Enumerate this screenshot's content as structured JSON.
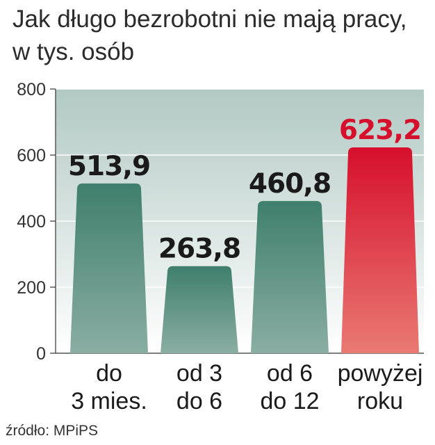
{
  "title": "Jak długo bezrobotni nie mają pracy, w tys. osób",
  "source": "źródło: MPiPS",
  "colors": {
    "bar": "#3f7f6c",
    "bar_light": "#8aaea3",
    "highlight": "#d60f2c",
    "highlight_light": "#e97a73",
    "value_text": "#1a1a1a",
    "highlight_text": "#d60f2c",
    "plot_bg_top": "#b2c9c3",
    "plot_bg_bottom": "#ffffff"
  },
  "chart_data": {
    "type": "bar",
    "categories": [
      [
        "do",
        "3 mies."
      ],
      [
        "od 3",
        "do 6"
      ],
      [
        "od 6",
        "do 12"
      ],
      [
        "powyżej",
        "roku"
      ]
    ],
    "values": [
      513.9,
      263.8,
      460.8,
      623.2
    ],
    "value_labels": [
      "513,9",
      "263,8",
      "460,8",
      "623,2"
    ],
    "highlight_index": 3,
    "ylim": [
      0,
      800
    ],
    "yticks": [
      0,
      200,
      400,
      600,
      800
    ],
    "grid": true,
    "legend": "none",
    "title": "Jak długo bezrobotni nie mają pracy, w tys. osób",
    "xlabel": "",
    "ylabel": ""
  }
}
